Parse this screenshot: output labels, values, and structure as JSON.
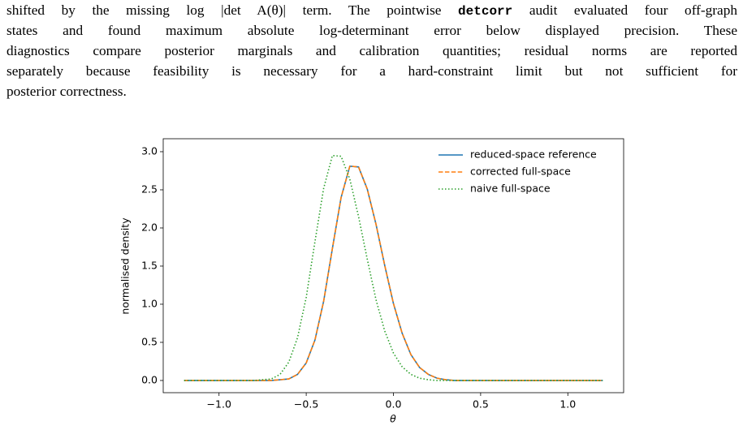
{
  "paragraph": [
    "shifted by the missing ",
    "log |det A(θ)|",
    " term. The pointwise ",
    "detcorr",
    " audit evaluated four off-graph",
    "states and found maximum absolute log-determinant error below displayed precision. These",
    "diagnostics compare posterior marginals and calibration quantities; residual norms are reported",
    "separately because feasibility is necessary for a hard-constraint limit but not sufficient for",
    "posterior correctness."
  ],
  "chart_data": {
    "type": "line",
    "xlabel": "θ",
    "ylabel": "normalised density",
    "x": [
      -1.2,
      -1.15,
      -1.1,
      -1.05,
      -1.0,
      -0.95,
      -0.9,
      -0.85,
      -0.8,
      -0.75,
      -0.7,
      -0.65,
      -0.6,
      -0.55,
      -0.5,
      -0.45,
      -0.4,
      -0.35,
      -0.3,
      -0.25,
      -0.2,
      -0.15,
      -0.1,
      -0.05,
      0.0,
      0.05,
      0.1,
      0.15,
      0.2,
      0.25,
      0.3,
      0.35,
      0.4,
      0.45,
      0.5,
      0.55,
      0.6,
      0.65,
      0.7,
      0.75,
      0.8,
      0.85,
      0.9,
      0.95,
      1.0,
      1.05,
      1.1,
      1.15,
      1.2
    ],
    "series": [
      {
        "name": "reduced-space reference",
        "color": "#1f77b4",
        "dash": "solid",
        "values": [
          0,
          0,
          0,
          0,
          0,
          0,
          0,
          0,
          0,
          0,
          0.0,
          0.01,
          0.02,
          0.08,
          0.23,
          0.53,
          1.04,
          1.73,
          2.4,
          2.81,
          2.8,
          2.51,
          2.05,
          1.51,
          1.01,
          0.62,
          0.34,
          0.17,
          0.08,
          0.03,
          0.01,
          0,
          0,
          0,
          0,
          0,
          0,
          0,
          0,
          0,
          0,
          0,
          0,
          0,
          0,
          0,
          0,
          0,
          0
        ]
      },
      {
        "name": "corrected full-space",
        "color": "#ff7f0e",
        "dash": "dashed",
        "values": [
          0,
          0,
          0,
          0,
          0,
          0,
          0,
          0,
          0,
          0,
          0.0,
          0.01,
          0.02,
          0.08,
          0.23,
          0.53,
          1.04,
          1.73,
          2.4,
          2.81,
          2.8,
          2.51,
          2.05,
          1.51,
          1.01,
          0.62,
          0.34,
          0.17,
          0.08,
          0.03,
          0.01,
          0,
          0,
          0,
          0,
          0,
          0,
          0,
          0,
          0,
          0,
          0,
          0,
          0,
          0,
          0,
          0,
          0,
          0
        ]
      },
      {
        "name": "naive full-space",
        "color": "#2ca02c",
        "dash": "dotted",
        "values": [
          0,
          0,
          0,
          0,
          0,
          0,
          0,
          0,
          0,
          0.01,
          0.02,
          0.08,
          0.24,
          0.56,
          1.09,
          1.82,
          2.52,
          2.95,
          2.94,
          2.64,
          2.15,
          1.59,
          1.06,
          0.65,
          0.36,
          0.18,
          0.08,
          0.03,
          0.01,
          0,
          0,
          0,
          0,
          0,
          0,
          0,
          0,
          0,
          0,
          0,
          0,
          0,
          0,
          0,
          0,
          0,
          0,
          0,
          0
        ]
      }
    ],
    "xlim": [
      -1.32,
      1.32
    ],
    "ylim": [
      -0.16,
      3.17
    ],
    "xticks": [
      {
        "value": -1,
        "label": "−1.0"
      },
      {
        "value": -0.5,
        "label": "−0.5"
      },
      {
        "value": 0,
        "label": "0.0"
      },
      0.5,
      {
        "value": 1,
        "label": "1.0"
      }
    ],
    "yticks": [
      {
        "value": 0,
        "label": "0.0"
      },
      0.5,
      {
        "value": 1,
        "label": "1.0"
      },
      1.5,
      {
        "value": 2,
        "label": "2.0"
      },
      2.5,
      {
        "value": 3,
        "label": "3.0"
      }
    ],
    "grid": false,
    "legend": "upper-right"
  }
}
